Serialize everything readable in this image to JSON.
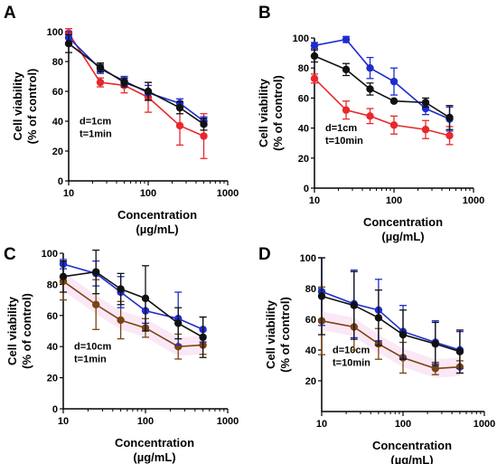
{
  "chart_data": [
    {
      "panel": "A",
      "type": "line",
      "x_scale": "log",
      "xlim": [
        10,
        1000
      ],
      "ylim": [
        0,
        100
      ],
      "xticks": [
        10,
        100,
        1000
      ],
      "yticks": [
        0,
        20,
        40,
        60,
        80,
        100
      ],
      "xtick_labels": [
        "10",
        "100",
        "1000"
      ],
      "ytick_labels": [
        "0",
        "20",
        "40",
        "60",
        "80",
        "100"
      ],
      "xlabel": "Concentration",
      "xlabel_unit": "(µg/mL)",
      "ylabel": "Cell viability",
      "ylabel_unit": "(% of control)",
      "annotation": [
        "d=1cm",
        "t=1min"
      ],
      "x": [
        10,
        25,
        50,
        100,
        250,
        500
      ],
      "series": [
        {
          "color": "#e8282b",
          "values": [
            99,
            66,
            64,
            56,
            37,
            30
          ],
          "errors": [
            3,
            3,
            5,
            10,
            13,
            15
          ]
        },
        {
          "color": "#1f2ccc",
          "values": [
            96,
            75,
            67,
            59,
            52,
            40
          ],
          "errors": [
            4,
            3,
            3,
            5,
            3,
            3
          ]
        },
        {
          "color": "#111111",
          "values": [
            92,
            76,
            66,
            60,
            49,
            38
          ],
          "errors": [
            6,
            3,
            3,
            6,
            4,
            4
          ]
        }
      ]
    },
    {
      "panel": "B",
      "type": "line",
      "x_scale": "log",
      "xlim": [
        10,
        1000
      ],
      "ylim": [
        0,
        100
      ],
      "xticks": [
        10,
        100,
        1000
      ],
      "yticks": [
        0,
        20,
        40,
        60,
        80,
        100
      ],
      "xtick_labels": [
        "10",
        "100",
        "1000"
      ],
      "ytick_labels": [
        "0",
        "20",
        "40",
        "60",
        "80",
        "100"
      ],
      "xlabel": "Concentration",
      "xlabel_unit": "(µg/mL)",
      "ylabel": "Cell viability",
      "ylabel_unit": "(% of control)",
      "annotation": [
        "d=1cm",
        "t=10min"
      ],
      "x": [
        10,
        25,
        50,
        100,
        250,
        500
      ],
      "series": [
        {
          "color": "#e8282b",
          "values": [
            73,
            52,
            48,
            42,
            39,
            35
          ],
          "errors": [
            3,
            6,
            5,
            6,
            6,
            6
          ]
        },
        {
          "color": "#1f2ccc",
          "values": [
            95,
            99,
            80,
            71,
            53,
            46
          ],
          "errors": [
            2,
            2,
            7,
            9,
            4,
            8
          ]
        },
        {
          "color": "#111111",
          "values": [
            88,
            79,
            66,
            58,
            57,
            47
          ],
          "errors": [
            4,
            4,
            4,
            0,
            3,
            8
          ]
        }
      ]
    },
    {
      "panel": "C",
      "type": "line",
      "x_scale": "log",
      "xlim": [
        10,
        1000
      ],
      "ylim": [
        0,
        100
      ],
      "xticks": [
        10,
        100,
        1000
      ],
      "yticks": [
        0,
        20,
        40,
        60,
        80,
        100
      ],
      "xtick_labels": [
        "10",
        "100",
        "1000"
      ],
      "ytick_labels": [
        "0",
        "20",
        "40",
        "60",
        "80",
        "100"
      ],
      "xlabel": "Concentration",
      "xlabel_unit": "(µg/mL)",
      "ylabel": "Cell viability",
      "ylabel_unit": "(% of control)",
      "annotation": [
        "d=10cm",
        "t=1min"
      ],
      "x": [
        10,
        25,
        50,
        100,
        250,
        500
      ],
      "series": [
        {
          "color": "#7a4412",
          "values": [
            82,
            67,
            57,
            52,
            40,
            41
          ],
          "errors": [
            12,
            16,
            12,
            6,
            8,
            6
          ]
        },
        {
          "color": "#1f2ccc",
          "values": [
            93,
            87,
            75,
            63,
            58,
            51
          ],
          "errors": [
            3,
            8,
            10,
            8,
            17,
            8
          ]
        },
        {
          "color": "#111111",
          "values": [
            85,
            88,
            77,
            71,
            55,
            46
          ],
          "errors": [
            10,
            14,
            10,
            21,
            10,
            13
          ]
        }
      ]
    },
    {
      "panel": "D",
      "type": "line",
      "x_scale": "log",
      "xlim": [
        10,
        1000
      ],
      "ylim": [
        0,
        100
      ],
      "xticks": [
        10,
        100,
        1000
      ],
      "yticks": [
        20,
        40,
        60,
        80,
        100
      ],
      "xtick_labels": [
        "10",
        "100",
        "1000"
      ],
      "ytick_labels": [
        "20",
        "40",
        "60",
        "80",
        "100"
      ],
      "xlabel": "Concentration",
      "xlabel_unit": "(µg/mL)",
      "ylabel": "Cell viability",
      "ylabel_unit": "(% of control)",
      "annotation": [
        "d=10cm",
        "t=10min"
      ],
      "x": [
        10,
        25,
        50,
        100,
        250,
        500
      ],
      "series": [
        {
          "color": "#7a4412",
          "values": [
            59,
            55,
            44,
            35,
            28,
            29
          ],
          "errors": [
            22,
            15,
            10,
            10,
            4,
            4
          ]
        },
        {
          "color": "#1f2ccc",
          "values": [
            78,
            70,
            66,
            52,
            45,
            40
          ],
          "errors": [
            22,
            22,
            20,
            17,
            14,
            12
          ]
        },
        {
          "color": "#111111",
          "values": [
            75,
            69,
            61,
            50,
            44,
            39
          ],
          "errors": [
            25,
            22,
            18,
            16,
            14,
            14
          ]
        }
      ]
    }
  ]
}
